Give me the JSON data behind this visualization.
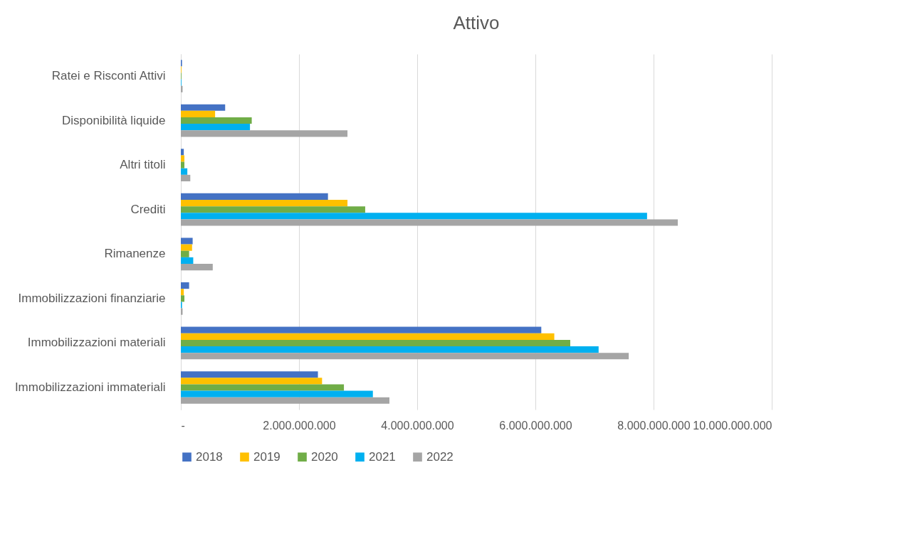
{
  "chart_data": {
    "type": "bar",
    "orientation": "horizontal",
    "title": "Attivo",
    "categories": [
      "Ratei e Risconti Attivi",
      "Disponibilità liquide",
      "Altri titoli",
      "Crediti",
      "Rimanenze",
      "Immobilizzazioni finanziarie",
      "Immobilizzazioni materiali",
      "Immobilizzazioni immateriali"
    ],
    "series": [
      {
        "name": "2018",
        "color": "#4472c4",
        "values": [
          20000000,
          750000000,
          50000000,
          2490000000,
          200000000,
          140000000,
          6100000000,
          2320000000
        ]
      },
      {
        "name": "2019",
        "color": "#ffc000",
        "values": [
          10000000,
          580000000,
          60000000,
          2820000000,
          190000000,
          50000000,
          6320000000,
          2390000000
        ]
      },
      {
        "name": "2020",
        "color": "#70ad47",
        "values": [
          10000000,
          1200000000,
          60000000,
          3120000000,
          140000000,
          60000000,
          6590000000,
          2760000000
        ]
      },
      {
        "name": "2021",
        "color": "#00b0f0",
        "values": [
          10000000,
          1170000000,
          110000000,
          7890000000,
          210000000,
          20000000,
          7070000000,
          3250000000
        ]
      },
      {
        "name": "2022",
        "color": "#a5a5a5",
        "values": [
          30000000,
          2820000000,
          160000000,
          8410000000,
          540000000,
          30000000,
          7580000000,
          3530000000
        ]
      }
    ],
    "xlim": [
      0,
      10000000000
    ],
    "xticks": [
      {
        "value": 0,
        "label": "-"
      },
      {
        "value": 2000000000,
        "label": "2.000.000.000"
      },
      {
        "value": 4000000000,
        "label": "4.000.000.000"
      },
      {
        "value": 6000000000,
        "label": "6.000.000.000"
      },
      {
        "value": 8000000000,
        "label": "8.000.000.000"
      },
      {
        "value": 10000000000,
        "label": "10.000.000.000"
      }
    ],
    "grid": "x",
    "legend": "bottom"
  }
}
